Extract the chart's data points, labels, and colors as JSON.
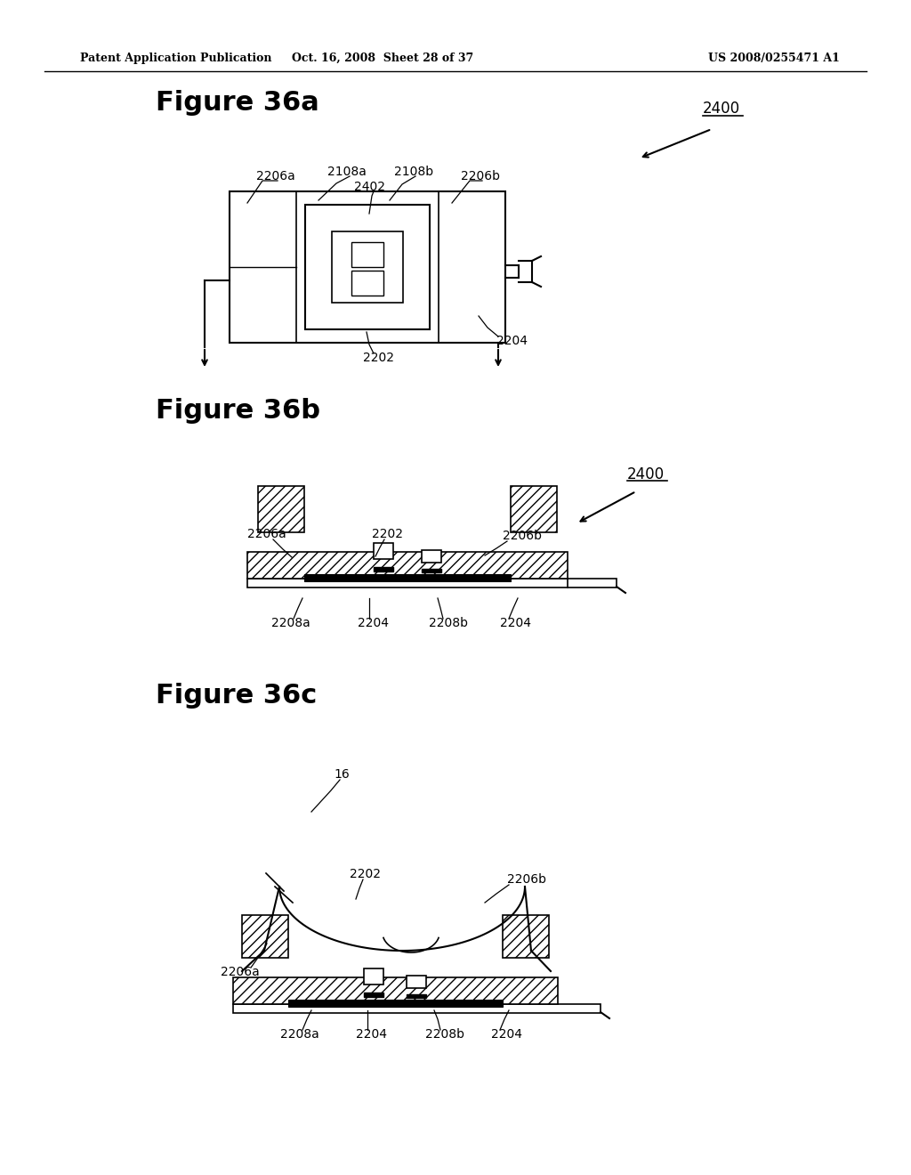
{
  "title_header_left": "Patent Application Publication",
  "title_header_mid": "Oct. 16, 2008  Sheet 28 of 37",
  "title_header_right": "US 2008/0255471 A1",
  "fig_a_title": "Figure 36a",
  "fig_b_title": "Figure 36b",
  "fig_c_title": "Figure 36c",
  "bg_color": "#ffffff",
  "line_color": "#000000"
}
